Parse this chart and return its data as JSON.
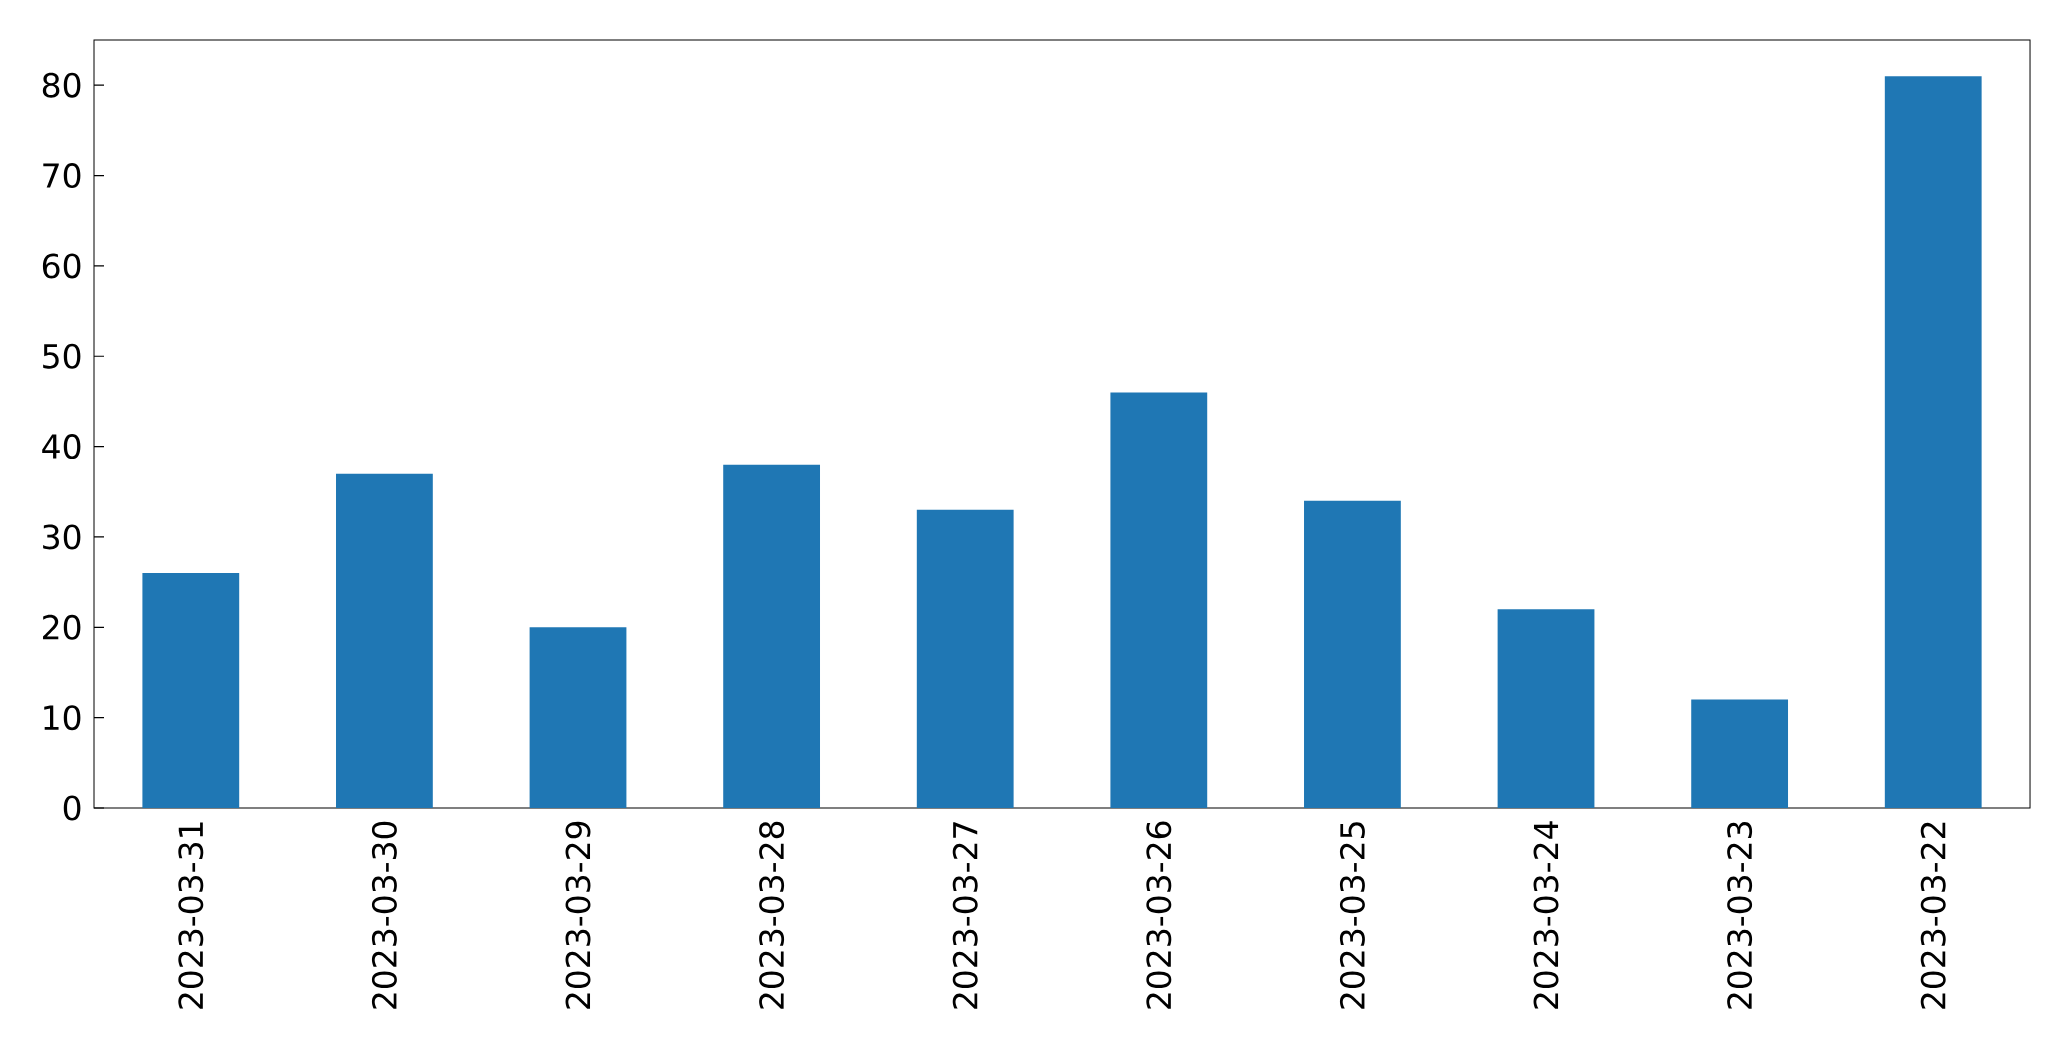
{
  "chart_data": {
    "type": "bar",
    "categories": [
      "2023-03-31",
      "2023-03-30",
      "2023-03-29",
      "2023-03-28",
      "2023-03-27",
      "2023-03-26",
      "2023-03-25",
      "2023-03-24",
      "2023-03-23",
      "2023-03-22"
    ],
    "values": [
      26,
      37,
      20,
      38,
      33,
      46,
      34,
      22,
      12,
      81
    ],
    "color": "#1f77b4",
    "ylim": [
      0,
      85
    ],
    "yticks": [
      0,
      10,
      20,
      30,
      40,
      50,
      60,
      70,
      80
    ]
  }
}
